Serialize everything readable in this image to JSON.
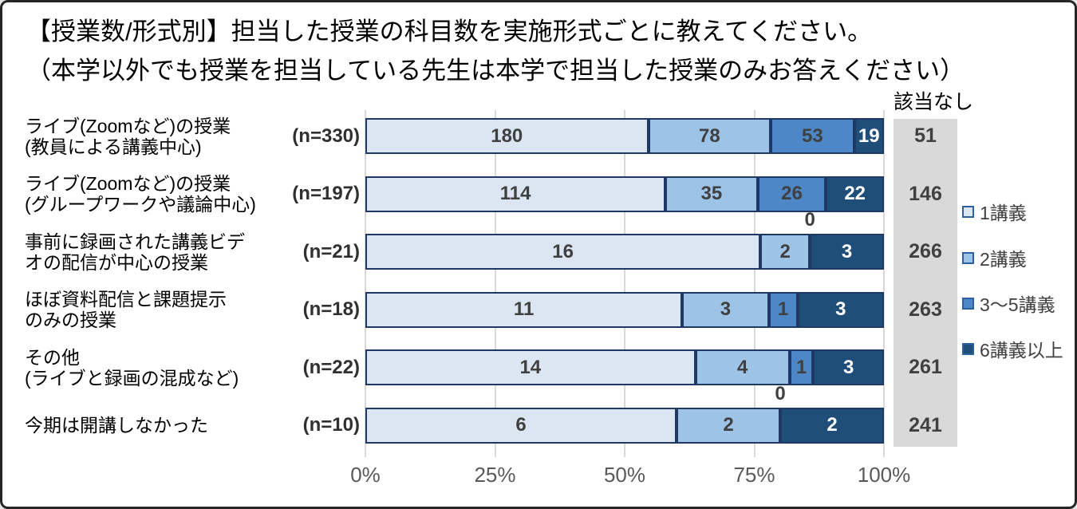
{
  "title": {
    "line1": "【授業数/形式別】担当した授業の科目数を実施形式ごとに教えてください。",
    "line2": "（本学以外でも授業を担当している先生は本学で担当した授業のみお答えください）"
  },
  "na_column": {
    "header": "該当なし",
    "values": [
      "51",
      "146",
      "266",
      "263",
      "261",
      "241"
    ]
  },
  "legend": {
    "items": [
      {
        "label": "1講義",
        "color": "#dce6f2"
      },
      {
        "label": "2講義",
        "color": "#9dc3e6"
      },
      {
        "label": "3〜5講義",
        "color": "#4d87c7"
      },
      {
        "label": "6講義以上",
        "color": "#1f4e79"
      }
    ]
  },
  "axis": {
    "ticks": [
      "0%",
      "25%",
      "50%",
      "75%",
      "100%"
    ]
  },
  "colors": {
    "segment_border": "#1f3864",
    "gridline": "#d9d9d9",
    "na_background": "#d9d9d9",
    "label_dark": "#404040",
    "label_light": "#ffffff",
    "axis_text": "#595959",
    "frame_border": "#262626",
    "legend_swatch_border": "#2e5f9f"
  },
  "chart_data": {
    "type": "bar",
    "orientation": "horizontal",
    "stacked": true,
    "title": "【授業数/形式別】担当した授業の科目数を実施形式ごとに教えてください。",
    "subtitle": "（本学以外でも授業を担当している先生は本学で担当した授業のみお答えください）",
    "x_axis": {
      "min": 0,
      "max": 100,
      "unit": "percent",
      "tick_labels": [
        "0%",
        "25%",
        "50%",
        "75%",
        "100%"
      ]
    },
    "grid": true,
    "legend_position": "right",
    "categories": [
      {
        "label_lines": [
          "ライブ(Zoomなど)の授業",
          "(教員による講義中心)"
        ],
        "n_label": "(n=330)",
        "n": 330
      },
      {
        "label_lines": [
          "ライブ(Zoomなど)の授業",
          "(グループワークや議論中心)"
        ],
        "n_label": "(n=197)",
        "n": 197
      },
      {
        "label_lines": [
          "事前に録画された講義ビデ",
          "オの配信が中心の授業"
        ],
        "n_label": "(n=21)",
        "n": 21
      },
      {
        "label_lines": [
          "ほぼ資料配信と課題提示",
          "のみの授業"
        ],
        "n_label": "(n=18)",
        "n": 18
      },
      {
        "label_lines": [
          "その他",
          "(ライブと録画の混成など)"
        ],
        "n_label": "(n=22)",
        "n": 22
      },
      {
        "label_lines": [
          "今期は開講しなかった"
        ],
        "n_label": "(n=10)",
        "n": 10
      }
    ],
    "series": [
      {
        "name": "1講義",
        "color": "#dce6f2",
        "values": [
          180,
          114,
          16,
          11,
          14,
          6
        ]
      },
      {
        "name": "2講義",
        "color": "#9dc3e6",
        "values": [
          78,
          35,
          2,
          3,
          4,
          2
        ]
      },
      {
        "name": "3〜5講義",
        "color": "#4d87c7",
        "values": [
          53,
          26,
          0,
          1,
          1,
          0
        ]
      },
      {
        "name": "6講義以上",
        "color": "#1f4e79",
        "values": [
          19,
          22,
          3,
          3,
          3,
          2
        ]
      }
    ],
    "na_series": {
      "name": "該当なし",
      "values": [
        51,
        146,
        266,
        263,
        261,
        241
      ]
    },
    "zero_labels_shown_above_bar": true
  }
}
